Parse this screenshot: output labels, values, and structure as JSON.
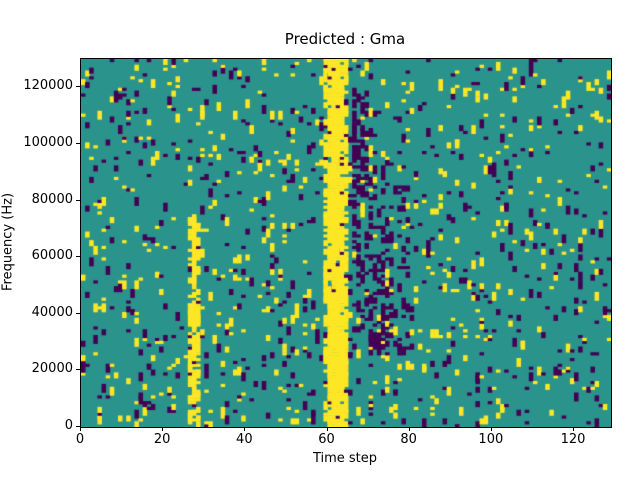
{
  "figure": {
    "background": "#ffffff"
  },
  "chart_data": {
    "type": "heatmap",
    "title": "Predicted : Gma",
    "xlabel": "Time step",
    "ylabel": "Frequency (Hz)",
    "xlim": [
      0,
      129
    ],
    "ylim": [
      0,
      130000
    ],
    "xticks": [
      {
        "v": 0,
        "label": "0"
      },
      {
        "v": 20,
        "label": "20"
      },
      {
        "v": 40,
        "label": "40"
      },
      {
        "v": 60,
        "label": "60"
      },
      {
        "v": 80,
        "label": "80"
      },
      {
        "v": 100,
        "label": "100"
      },
      {
        "v": 120,
        "label": "120"
      }
    ],
    "yticks": [
      {
        "v": 0,
        "label": "0"
      },
      {
        "v": 20000,
        "label": "20000"
      },
      {
        "v": 40000,
        "label": "40000"
      },
      {
        "v": 60000,
        "label": "60000"
      },
      {
        "v": 80000,
        "label": "80000"
      },
      {
        "v": 100000,
        "label": "100000"
      },
      {
        "v": 120000,
        "label": "120000"
      }
    ],
    "legend": "none",
    "grid": {
      "cols": 129,
      "rows": 128
    },
    "colors": {
      "background_teal": "#2a938c",
      "high_yellow": "#fde725",
      "low_purple": "#440154",
      "axes": "#000000"
    },
    "pattern": {
      "seed": 42,
      "base_density": {
        "high": 0.035,
        "low": 0.032
      },
      "vertical_run_prob": 0.45,
      "features": [
        {
          "x0": 59,
          "x1": 64,
          "y0": 0,
          "y1": 127,
          "color": "high",
          "p": 0.55
        },
        {
          "x0": 60,
          "x1": 63,
          "y0": 0,
          "y1": 120,
          "color": "high",
          "p": 0.85
        },
        {
          "x0": 61,
          "x1": 62,
          "y0": 0,
          "y1": 127,
          "color": "high",
          "p": 0.95
        },
        {
          "x0": 26,
          "x1": 28,
          "y0": 0,
          "y1": 72,
          "color": "high",
          "p": 0.4
        },
        {
          "x0": 27,
          "x1": 27,
          "y0": 5,
          "y1": 70,
          "color": "high",
          "p": 0.8
        },
        {
          "x0": 65,
          "x1": 79,
          "y0": 25,
          "y1": 95,
          "color": "low",
          "p": 0.16
        },
        {
          "x0": 66,
          "x1": 69,
          "y0": 55,
          "y1": 115,
          "color": "low",
          "p": 0.35
        },
        {
          "x0": 70,
          "x1": 75,
          "y0": 30,
          "y1": 60,
          "color": "low",
          "p": 0.3
        }
      ]
    }
  }
}
